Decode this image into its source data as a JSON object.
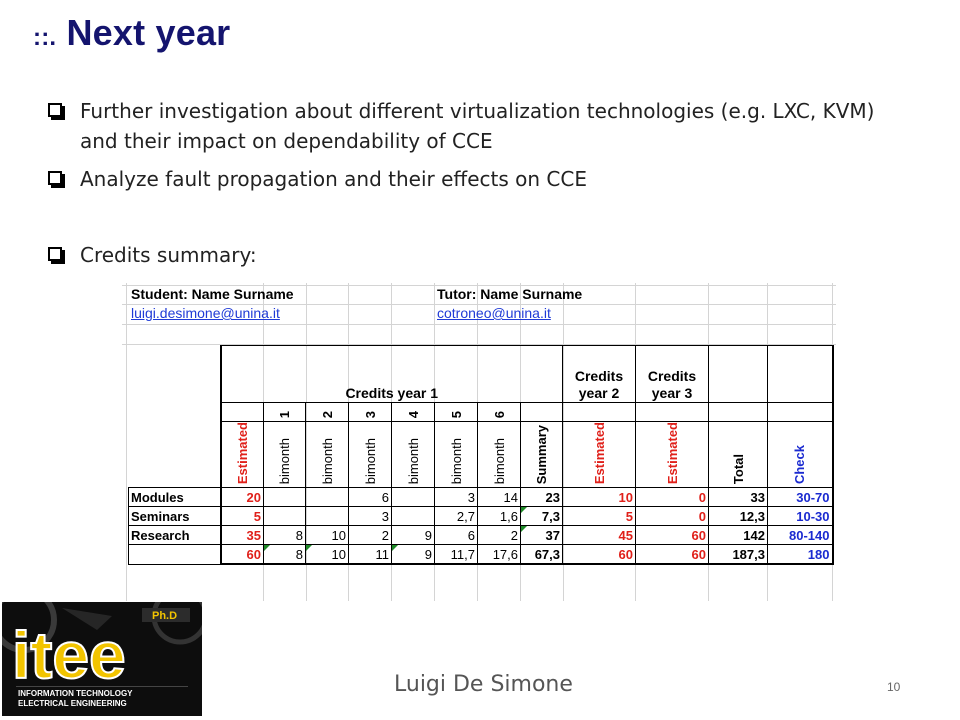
{
  "slide": {
    "title_prefix": "::.",
    "title": "Next year",
    "bullets": [
      "Further investigation about different virtualization technologies (e.g. LXC, KVM) and their impact on dependability of CCE",
      "Analyze fault propagation and their effects on CCE",
      "Credits summary:"
    ],
    "footer_author": "Luigi De Simone",
    "page_number": "10"
  },
  "sheet": {
    "student_label": "Student: Name Surname",
    "student_email": "luigi.desimone@unina.it",
    "tutor_label": "Tutor: Name Surname",
    "tutor_email": "cotroneo@unina.it",
    "credits_year1": "Credits year 1",
    "credits_year2": "Credits year 2",
    "credits_year3": "Credits year 3",
    "bimonth_numbers": [
      "1",
      "2",
      "3",
      "4",
      "5",
      "6"
    ],
    "vertical_headers": {
      "estimated": "Estimated",
      "bimonth": "bimonth",
      "summary": "Summary",
      "total": "Total",
      "check": "Check"
    },
    "rows": [
      {
        "label": "Modules",
        "est": "20",
        "b": [
          "",
          "",
          "6",
          "",
          "3",
          "14"
        ],
        "summary": "23",
        "y2": "10",
        "y3": "0",
        "total": "33",
        "check": "30-70"
      },
      {
        "label": "Seminars",
        "est": "5",
        "b": [
          "",
          "",
          "3",
          "",
          "2,7",
          "1,6"
        ],
        "summary": "7,3",
        "y2": "5",
        "y3": "0",
        "total": "12,3",
        "check": "10-30"
      },
      {
        "label": "Research",
        "est": "35",
        "b": [
          "8",
          "10",
          "2",
          "9",
          "6",
          "2"
        ],
        "summary": "37",
        "y2": "45",
        "y3": "60",
        "total": "142",
        "check": "80-140"
      },
      {
        "label": "",
        "est": "60",
        "b": [
          "8",
          "10",
          "11",
          "9",
          "11,7",
          "17,6"
        ],
        "summary": "67,3",
        "y2": "60",
        "y3": "60",
        "total": "187,3",
        "check": "180"
      }
    ]
  },
  "logo": {
    "main": "itee",
    "badge": "Ph.D",
    "line1": "INFORMATION TECHNOLOGY",
    "line2": "ELECTRICAL ENGINEERING"
  },
  "colors": {
    "title": "#14146e",
    "estimated_red": "#e0201a",
    "check_blue": "#1a2ad0",
    "logo_yellow": "#f2c400"
  }
}
